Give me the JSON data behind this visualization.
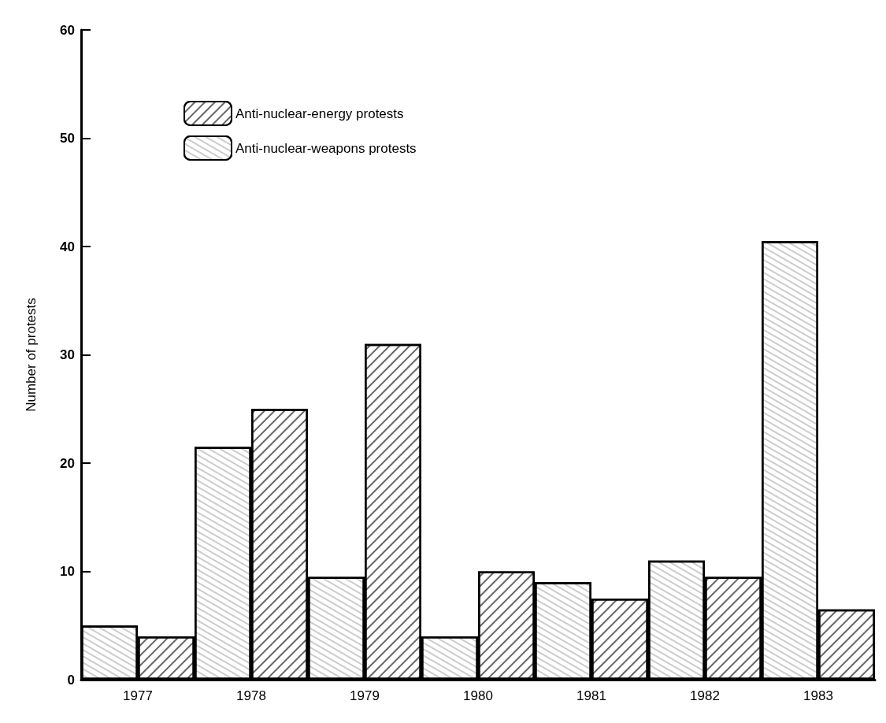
{
  "chart_data": {
    "type": "bar",
    "ylabel": "Number of protests",
    "categories": [
      "1977",
      "1978",
      "1979",
      "1980",
      "1981",
      "1982",
      "1983"
    ],
    "series": [
      {
        "name": "Anti-nuclear-weapons protests",
        "color": "#ffffff",
        "values": [
          5,
          21.5,
          9.5,
          4,
          9,
          11,
          40.5
        ]
      },
      {
        "name": "Anti-nuclear-energy protests",
        "color": "#000000",
        "values": [
          4,
          25,
          31,
          10,
          7.5,
          9.5,
          6.5
        ]
      }
    ],
    "ylim": [
      0,
      60
    ],
    "yticks": [
      0,
      10,
      20,
      30,
      40,
      50,
      60
    ],
    "grid": false,
    "legend": "top left"
  }
}
